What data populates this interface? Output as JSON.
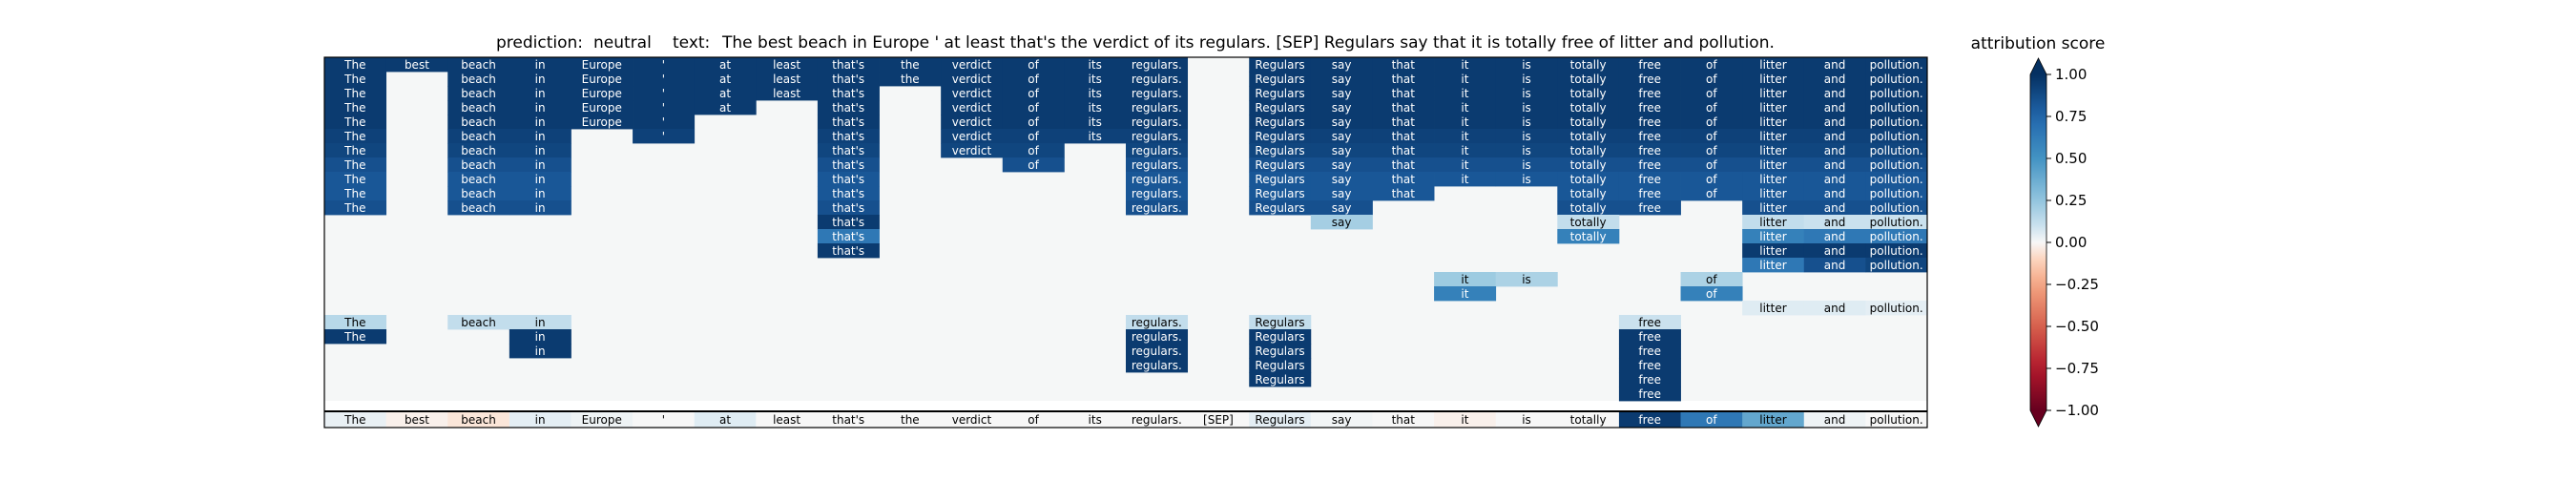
{
  "header": {
    "prediction_label": "prediction:",
    "prediction_value": "neutral",
    "text_label": "text:",
    "text_value": "The best beach in Europe ' at least that's the verdict of its regulars. [SEP] Regulars say that it is totally free of litter and pollution."
  },
  "chart_data": {
    "type": "heatmap",
    "title": "prediction:  neutral     text:  The best beach in Europe ' at least that's the verdict of its regulars. [SEP] Regulars say that it is totally free of litter and pollution.",
    "columns": [
      "The",
      "best",
      "beach",
      "in",
      "Europe",
      "'",
      "at",
      "least",
      "that's",
      "the",
      "verdict",
      "of",
      "its",
      "regulars.",
      "[SEP]",
      "Regulars",
      "say",
      "that",
      "it",
      "is",
      "totally",
      "free",
      "of",
      "litter",
      "and",
      "pollution."
    ],
    "n_rows": 24,
    "cells": [
      {
        "r": 0,
        "c": 0,
        "v": 0.95
      },
      {
        "r": 0,
        "c": 1,
        "v": 0.95
      },
      {
        "r": 0,
        "c": 2,
        "v": 0.95
      },
      {
        "r": 0,
        "c": 3,
        "v": 0.95
      },
      {
        "r": 0,
        "c": 4,
        "v": 0.95
      },
      {
        "r": 0,
        "c": 5,
        "v": 0.95
      },
      {
        "r": 0,
        "c": 6,
        "v": 0.95
      },
      {
        "r": 0,
        "c": 7,
        "v": 0.95
      },
      {
        "r": 0,
        "c": 8,
        "v": 0.95
      },
      {
        "r": 0,
        "c": 9,
        "v": 0.95
      },
      {
        "r": 0,
        "c": 10,
        "v": 0.95
      },
      {
        "r": 0,
        "c": 11,
        "v": 0.95
      },
      {
        "r": 0,
        "c": 12,
        "v": 0.95
      },
      {
        "r": 0,
        "c": 13,
        "v": 0.95
      },
      {
        "r": 0,
        "c": 15,
        "v": 0.95
      },
      {
        "r": 0,
        "c": 16,
        "v": 0.95
      },
      {
        "r": 0,
        "c": 17,
        "v": 0.95
      },
      {
        "r": 0,
        "c": 18,
        "v": 0.95
      },
      {
        "r": 0,
        "c": 19,
        "v": 0.95
      },
      {
        "r": 0,
        "c": 20,
        "v": 0.95
      },
      {
        "r": 0,
        "c": 21,
        "v": 0.95
      },
      {
        "r": 0,
        "c": 22,
        "v": 0.95
      },
      {
        "r": 0,
        "c": 23,
        "v": 0.95
      },
      {
        "r": 0,
        "c": 24,
        "v": 0.95
      },
      {
        "r": 0,
        "c": 25,
        "v": 0.95
      },
      {
        "r": 1,
        "c": 0,
        "v": 0.95
      },
      {
        "r": 1,
        "c": 2,
        "v": 0.95
      },
      {
        "r": 1,
        "c": 3,
        "v": 0.95
      },
      {
        "r": 1,
        "c": 4,
        "v": 0.95
      },
      {
        "r": 1,
        "c": 5,
        "v": 0.95
      },
      {
        "r": 1,
        "c": 6,
        "v": 0.95
      },
      {
        "r": 1,
        "c": 7,
        "v": 0.95
      },
      {
        "r": 1,
        "c": 8,
        "v": 0.95
      },
      {
        "r": 1,
        "c": 9,
        "v": 0.95
      },
      {
        "r": 1,
        "c": 10,
        "v": 0.95
      },
      {
        "r": 1,
        "c": 11,
        "v": 0.95
      },
      {
        "r": 1,
        "c": 12,
        "v": 0.95
      },
      {
        "r": 1,
        "c": 13,
        "v": 0.95
      },
      {
        "r": 1,
        "c": 15,
        "v": 0.95
      },
      {
        "r": 1,
        "c": 16,
        "v": 0.95
      },
      {
        "r": 1,
        "c": 17,
        "v": 0.95
      },
      {
        "r": 1,
        "c": 18,
        "v": 0.95
      },
      {
        "r": 1,
        "c": 19,
        "v": 0.95
      },
      {
        "r": 1,
        "c": 20,
        "v": 0.95
      },
      {
        "r": 1,
        "c": 21,
        "v": 0.95
      },
      {
        "r": 1,
        "c": 22,
        "v": 0.95
      },
      {
        "r": 1,
        "c": 23,
        "v": 0.95
      },
      {
        "r": 1,
        "c": 24,
        "v": 0.95
      },
      {
        "r": 1,
        "c": 25,
        "v": 0.95
      },
      {
        "r": 2,
        "c": 0,
        "v": 0.95
      },
      {
        "r": 2,
        "c": 2,
        "v": 0.95
      },
      {
        "r": 2,
        "c": 3,
        "v": 0.95
      },
      {
        "r": 2,
        "c": 4,
        "v": 0.95
      },
      {
        "r": 2,
        "c": 5,
        "v": 0.95
      },
      {
        "r": 2,
        "c": 6,
        "v": 0.95
      },
      {
        "r": 2,
        "c": 7,
        "v": 0.95
      },
      {
        "r": 2,
        "c": 8,
        "v": 0.95
      },
      {
        "r": 2,
        "c": 10,
        "v": 0.95
      },
      {
        "r": 2,
        "c": 11,
        "v": 0.95
      },
      {
        "r": 2,
        "c": 12,
        "v": 0.95
      },
      {
        "r": 2,
        "c": 13,
        "v": 0.95
      },
      {
        "r": 2,
        "c": 15,
        "v": 0.95
      },
      {
        "r": 2,
        "c": 16,
        "v": 0.95
      },
      {
        "r": 2,
        "c": 17,
        "v": 0.95
      },
      {
        "r": 2,
        "c": 18,
        "v": 0.95
      },
      {
        "r": 2,
        "c": 19,
        "v": 0.95
      },
      {
        "r": 2,
        "c": 20,
        "v": 0.95
      },
      {
        "r": 2,
        "c": 21,
        "v": 0.95
      },
      {
        "r": 2,
        "c": 22,
        "v": 0.95
      },
      {
        "r": 2,
        "c": 23,
        "v": 0.95
      },
      {
        "r": 2,
        "c": 24,
        "v": 0.95
      },
      {
        "r": 2,
        "c": 25,
        "v": 0.95
      },
      {
        "r": 3,
        "c": 0,
        "v": 0.95
      },
      {
        "r": 3,
        "c": 2,
        "v": 0.95
      },
      {
        "r": 3,
        "c": 3,
        "v": 0.95
      },
      {
        "r": 3,
        "c": 4,
        "v": 0.95
      },
      {
        "r": 3,
        "c": 5,
        "v": 0.95
      },
      {
        "r": 3,
        "c": 6,
        "v": 0.95
      },
      {
        "r": 3,
        "c": 8,
        "v": 0.95
      },
      {
        "r": 3,
        "c": 10,
        "v": 0.95
      },
      {
        "r": 3,
        "c": 11,
        "v": 0.95
      },
      {
        "r": 3,
        "c": 12,
        "v": 0.95
      },
      {
        "r": 3,
        "c": 13,
        "v": 0.95
      },
      {
        "r": 3,
        "c": 15,
        "v": 0.95
      },
      {
        "r": 3,
        "c": 16,
        "v": 0.95
      },
      {
        "r": 3,
        "c": 17,
        "v": 0.95
      },
      {
        "r": 3,
        "c": 18,
        "v": 0.95
      },
      {
        "r": 3,
        "c": 19,
        "v": 0.95
      },
      {
        "r": 3,
        "c": 20,
        "v": 0.95
      },
      {
        "r": 3,
        "c": 21,
        "v": 0.95
      },
      {
        "r": 3,
        "c": 22,
        "v": 0.95
      },
      {
        "r": 3,
        "c": 23,
        "v": 0.95
      },
      {
        "r": 3,
        "c": 24,
        "v": 0.95
      },
      {
        "r": 3,
        "c": 25,
        "v": 0.95
      },
      {
        "r": 4,
        "c": 0,
        "v": 0.95
      },
      {
        "r": 4,
        "c": 2,
        "v": 0.95
      },
      {
        "r": 4,
        "c": 3,
        "v": 0.95
      },
      {
        "r": 4,
        "c": 4,
        "v": 0.95
      },
      {
        "r": 4,
        "c": 5,
        "v": 0.95
      },
      {
        "r": 4,
        "c": 8,
        "v": 0.95
      },
      {
        "r": 4,
        "c": 10,
        "v": 0.95
      },
      {
        "r": 4,
        "c": 11,
        "v": 0.95
      },
      {
        "r": 4,
        "c": 12,
        "v": 0.95
      },
      {
        "r": 4,
        "c": 13,
        "v": 0.95
      },
      {
        "r": 4,
        "c": 15,
        "v": 0.95
      },
      {
        "r": 4,
        "c": 16,
        "v": 0.95
      },
      {
        "r": 4,
        "c": 17,
        "v": 0.95
      },
      {
        "r": 4,
        "c": 18,
        "v": 0.95
      },
      {
        "r": 4,
        "c": 19,
        "v": 0.95
      },
      {
        "r": 4,
        "c": 20,
        "v": 0.95
      },
      {
        "r": 4,
        "c": 21,
        "v": 0.95
      },
      {
        "r": 4,
        "c": 22,
        "v": 0.95
      },
      {
        "r": 4,
        "c": 23,
        "v": 0.95
      },
      {
        "r": 4,
        "c": 24,
        "v": 0.95
      },
      {
        "r": 4,
        "c": 25,
        "v": 0.95
      },
      {
        "r": 5,
        "c": 0,
        "v": 0.92
      },
      {
        "r": 5,
        "c": 2,
        "v": 0.92
      },
      {
        "r": 5,
        "c": 3,
        "v": 0.92
      },
      {
        "r": 5,
        "c": 5,
        "v": 0.92
      },
      {
        "r": 5,
        "c": 8,
        "v": 0.92
      },
      {
        "r": 5,
        "c": 10,
        "v": 0.92
      },
      {
        "r": 5,
        "c": 11,
        "v": 0.92
      },
      {
        "r": 5,
        "c": 12,
        "v": 0.92
      },
      {
        "r": 5,
        "c": 13,
        "v": 0.92
      },
      {
        "r": 5,
        "c": 15,
        "v": 0.92
      },
      {
        "r": 5,
        "c": 16,
        "v": 0.92
      },
      {
        "r": 5,
        "c": 17,
        "v": 0.92
      },
      {
        "r": 5,
        "c": 18,
        "v": 0.92
      },
      {
        "r": 5,
        "c": 19,
        "v": 0.92
      },
      {
        "r": 5,
        "c": 20,
        "v": 0.92
      },
      {
        "r": 5,
        "c": 21,
        "v": 0.92
      },
      {
        "r": 5,
        "c": 22,
        "v": 0.92
      },
      {
        "r": 5,
        "c": 23,
        "v": 0.92
      },
      {
        "r": 5,
        "c": 24,
        "v": 0.92
      },
      {
        "r": 5,
        "c": 25,
        "v": 0.92
      },
      {
        "r": 6,
        "c": 0,
        "v": 0.9
      },
      {
        "r": 6,
        "c": 2,
        "v": 0.9
      },
      {
        "r": 6,
        "c": 3,
        "v": 0.9
      },
      {
        "r": 6,
        "c": 8,
        "v": 0.9
      },
      {
        "r": 6,
        "c": 10,
        "v": 0.9
      },
      {
        "r": 6,
        "c": 11,
        "v": 0.9
      },
      {
        "r": 6,
        "c": 13,
        "v": 0.9
      },
      {
        "r": 6,
        "c": 15,
        "v": 0.9
      },
      {
        "r": 6,
        "c": 16,
        "v": 0.9
      },
      {
        "r": 6,
        "c": 17,
        "v": 0.9
      },
      {
        "r": 6,
        "c": 18,
        "v": 0.9
      },
      {
        "r": 6,
        "c": 19,
        "v": 0.9
      },
      {
        "r": 6,
        "c": 20,
        "v": 0.9
      },
      {
        "r": 6,
        "c": 21,
        "v": 0.9
      },
      {
        "r": 6,
        "c": 22,
        "v": 0.9
      },
      {
        "r": 6,
        "c": 23,
        "v": 0.9
      },
      {
        "r": 6,
        "c": 24,
        "v": 0.9
      },
      {
        "r": 6,
        "c": 25,
        "v": 0.9
      },
      {
        "r": 7,
        "c": 0,
        "v": 0.85
      },
      {
        "r": 7,
        "c": 2,
        "v": 0.85
      },
      {
        "r": 7,
        "c": 3,
        "v": 0.85
      },
      {
        "r": 7,
        "c": 8,
        "v": 0.85
      },
      {
        "r": 7,
        "c": 11,
        "v": 0.85
      },
      {
        "r": 7,
        "c": 13,
        "v": 0.85
      },
      {
        "r": 7,
        "c": 15,
        "v": 0.85
      },
      {
        "r": 7,
        "c": 16,
        "v": 0.85
      },
      {
        "r": 7,
        "c": 17,
        "v": 0.85
      },
      {
        "r": 7,
        "c": 18,
        "v": 0.85
      },
      {
        "r": 7,
        "c": 19,
        "v": 0.85
      },
      {
        "r": 7,
        "c": 20,
        "v": 0.85
      },
      {
        "r": 7,
        "c": 21,
        "v": 0.85
      },
      {
        "r": 7,
        "c": 22,
        "v": 0.85
      },
      {
        "r": 7,
        "c": 23,
        "v": 0.85
      },
      {
        "r": 7,
        "c": 24,
        "v": 0.85
      },
      {
        "r": 7,
        "c": 25,
        "v": 0.85
      },
      {
        "r": 8,
        "c": 0,
        "v": 0.82
      },
      {
        "r": 8,
        "c": 2,
        "v": 0.82
      },
      {
        "r": 8,
        "c": 3,
        "v": 0.82
      },
      {
        "r": 8,
        "c": 8,
        "v": 0.82
      },
      {
        "r": 8,
        "c": 13,
        "v": 0.82
      },
      {
        "r": 8,
        "c": 15,
        "v": 0.82
      },
      {
        "r": 8,
        "c": 16,
        "v": 0.82
      },
      {
        "r": 8,
        "c": 17,
        "v": 0.82
      },
      {
        "r": 8,
        "c": 18,
        "v": 0.82
      },
      {
        "r": 8,
        "c": 19,
        "v": 0.82
      },
      {
        "r": 8,
        "c": 20,
        "v": 0.82
      },
      {
        "r": 8,
        "c": 21,
        "v": 0.82
      },
      {
        "r": 8,
        "c": 22,
        "v": 0.82
      },
      {
        "r": 8,
        "c": 23,
        "v": 0.82
      },
      {
        "r": 8,
        "c": 24,
        "v": 0.82
      },
      {
        "r": 8,
        "c": 25,
        "v": 0.82
      },
      {
        "r": 9,
        "c": 0,
        "v": 0.82
      },
      {
        "r": 9,
        "c": 2,
        "v": 0.82
      },
      {
        "r": 9,
        "c": 3,
        "v": 0.82
      },
      {
        "r": 9,
        "c": 8,
        "v": 0.82
      },
      {
        "r": 9,
        "c": 13,
        "v": 0.82
      },
      {
        "r": 9,
        "c": 15,
        "v": 0.82
      },
      {
        "r": 9,
        "c": 16,
        "v": 0.82
      },
      {
        "r": 9,
        "c": 17,
        "v": 0.82
      },
      {
        "r": 9,
        "c": 20,
        "v": 0.82
      },
      {
        "r": 9,
        "c": 21,
        "v": 0.82
      },
      {
        "r": 9,
        "c": 22,
        "v": 0.82
      },
      {
        "r": 9,
        "c": 23,
        "v": 0.82
      },
      {
        "r": 9,
        "c": 24,
        "v": 0.82
      },
      {
        "r": 9,
        "c": 25,
        "v": 0.82
      },
      {
        "r": 10,
        "c": 0,
        "v": 0.85
      },
      {
        "r": 10,
        "c": 2,
        "v": 0.85
      },
      {
        "r": 10,
        "c": 3,
        "v": 0.85
      },
      {
        "r": 10,
        "c": 8,
        "v": 0.85
      },
      {
        "r": 10,
        "c": 13,
        "v": 0.85
      },
      {
        "r": 10,
        "c": 15,
        "v": 0.85
      },
      {
        "r": 10,
        "c": 16,
        "v": 0.85
      },
      {
        "r": 10,
        "c": 20,
        "v": 0.85
      },
      {
        "r": 10,
        "c": 21,
        "v": 0.85
      },
      {
        "r": 10,
        "c": 23,
        "v": 0.85
      },
      {
        "r": 10,
        "c": 24,
        "v": 0.85
      },
      {
        "r": 10,
        "c": 25,
        "v": 0.85
      },
      {
        "r": 11,
        "c": 8,
        "v": 0.95
      },
      {
        "r": 11,
        "c": 16,
        "v": 0.2
      },
      {
        "r": 11,
        "c": 20,
        "v": 0.12
      },
      {
        "r": 11,
        "c": 23,
        "v": 0.12
      },
      {
        "r": 11,
        "c": 24,
        "v": 0.1
      },
      {
        "r": 11,
        "c": 25,
        "v": 0.1
      },
      {
        "r": 12,
        "c": 8,
        "v": 0.65
      },
      {
        "r": 12,
        "c": 20,
        "v": 0.6
      },
      {
        "r": 12,
        "c": 23,
        "v": 0.6
      },
      {
        "r": 12,
        "c": 24,
        "v": 0.65
      },
      {
        "r": 12,
        "c": 25,
        "v": 0.65
      },
      {
        "r": 13,
        "c": 8,
        "v": 0.95
      },
      {
        "r": 13,
        "c": 23,
        "v": 0.95
      },
      {
        "r": 13,
        "c": 24,
        "v": 0.95
      },
      {
        "r": 13,
        "c": 25,
        "v": 0.95
      },
      {
        "r": 14,
        "c": 23,
        "v": 0.65
      },
      {
        "r": 14,
        "c": 24,
        "v": 0.85
      },
      {
        "r": 14,
        "c": 25,
        "v": 0.9
      },
      {
        "r": 15,
        "c": 18,
        "v": 0.22
      },
      {
        "r": 15,
        "c": 19,
        "v": 0.18
      },
      {
        "r": 15,
        "c": 22,
        "v": 0.18
      },
      {
        "r": 16,
        "c": 18,
        "v": 0.6
      },
      {
        "r": 16,
        "c": 22,
        "v": 0.6
      },
      {
        "r": 17,
        "c": 23,
        "v": 0.05
      },
      {
        "r": 17,
        "c": 24,
        "v": 0.05
      },
      {
        "r": 17,
        "c": 25,
        "v": 0.04
      },
      {
        "r": 18,
        "c": 0,
        "v": 0.15
      },
      {
        "r": 18,
        "c": 2,
        "v": 0.12
      },
      {
        "r": 18,
        "c": 3,
        "v": 0.12
      },
      {
        "r": 18,
        "c": 13,
        "v": 0.12
      },
      {
        "r": 18,
        "c": 15,
        "v": 0.12
      },
      {
        "r": 18,
        "c": 21,
        "v": 0.1
      },
      {
        "r": 19,
        "c": 0,
        "v": 0.95
      },
      {
        "r": 19,
        "c": 3,
        "v": 0.95
      },
      {
        "r": 19,
        "c": 13,
        "v": 0.95
      },
      {
        "r": 19,
        "c": 15,
        "v": 0.95
      },
      {
        "r": 19,
        "c": 21,
        "v": 0.95
      },
      {
        "r": 20,
        "c": 3,
        "v": 0.95
      },
      {
        "r": 20,
        "c": 13,
        "v": 0.95
      },
      {
        "r": 20,
        "c": 15,
        "v": 0.95
      },
      {
        "r": 20,
        "c": 21,
        "v": 0.95
      },
      {
        "r": 21,
        "c": 13,
        "v": 0.95
      },
      {
        "r": 21,
        "c": 15,
        "v": 0.95
      },
      {
        "r": 21,
        "c": 21,
        "v": 0.95
      },
      {
        "r": 22,
        "c": 15,
        "v": 0.95
      },
      {
        "r": 22,
        "c": 21,
        "v": 0.95
      },
      {
        "r": 23,
        "c": 21,
        "v": 0.95
      }
    ],
    "bottom_row_values": [
      0.03,
      -0.02,
      -0.05,
      0.04,
      0.02,
      0.0,
      0.05,
      0.0,
      0.0,
      0.0,
      0.0,
      0.0,
      0.0,
      0.0,
      0.0,
      0.04,
      0.01,
      0.0,
      -0.02,
      0.0,
      0.0,
      0.95,
      0.65,
      0.4,
      0.02,
      0.0
    ],
    "colorbar": {
      "title": "attribution score",
      "vmin": -1.0,
      "vmax": 1.0,
      "ticks": [
        "1.00",
        "0.75",
        "0.50",
        "0.25",
        "0.00",
        "−0.25",
        "−0.50",
        "−0.75",
        "−1.00"
      ],
      "tick_values": [
        1.0,
        0.75,
        0.5,
        0.25,
        0.0,
        -0.25,
        -0.5,
        -0.75,
        -1.0
      ],
      "extend": "both",
      "colormap": "RdBu"
    }
  }
}
